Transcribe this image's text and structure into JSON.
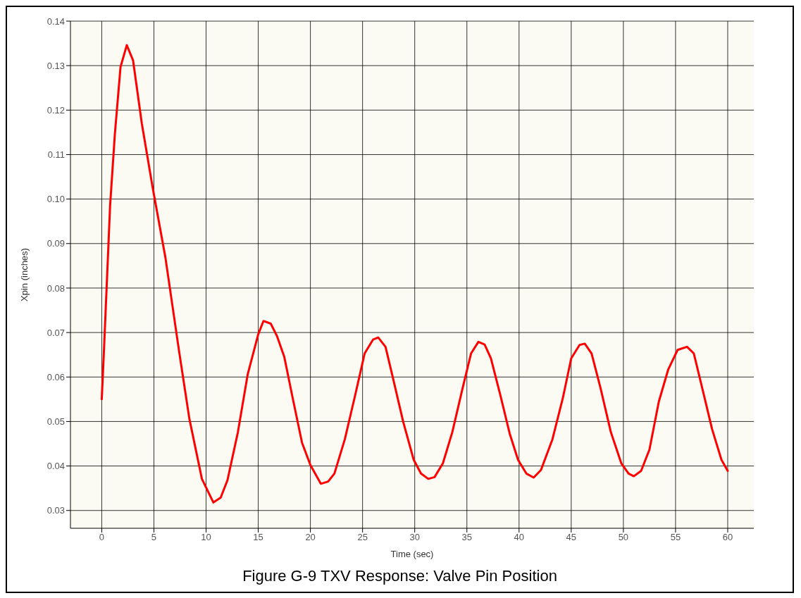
{
  "chart_data": {
    "type": "line",
    "title": "Figure G-9  TXV Response: Valve Pin Position",
    "xlabel": "Time (sec)",
    "ylabel": "Xpin (inches)",
    "x": [
      0,
      0.2,
      0.8,
      1.26,
      1.8,
      2.4,
      3.0,
      3.84,
      4.9,
      6.1,
      7.4,
      8.4,
      9.6,
      10.7,
      11.4,
      12.05,
      13.05,
      14.0,
      15.0,
      15.5,
      16.2,
      16.8,
      17.5,
      18.3,
      19.2,
      20.0,
      21.0,
      21.7,
      22.3,
      23.3,
      24.3,
      25.2,
      26.0,
      26.5,
      27.2,
      27.9,
      28.9,
      29.9,
      30.6,
      31.3,
      31.9,
      32.7,
      33.6,
      34.6,
      35.4,
      36.1,
      36.7,
      37.3,
      38.2,
      39.1,
      39.9,
      40.7,
      41.4,
      42.1,
      43.2,
      44.2,
      45.0,
      45.8,
      46.3,
      46.95,
      47.8,
      48.8,
      49.8,
      50.5,
      51.0,
      51.7,
      52.5,
      53.4,
      54.3,
      55.2,
      56.1,
      56.75,
      57.6,
      58.5,
      59.4,
      60
    ],
    "series": [
      {
        "color": "#ff0000",
        "values": [
          0.055,
          0.0653,
          0.0985,
          0.1147,
          0.1297,
          0.1346,
          0.1312,
          0.117,
          0.1023,
          0.0869,
          0.066,
          0.0506,
          0.0371,
          0.0318,
          0.0329,
          0.0368,
          0.0476,
          0.0607,
          0.0696,
          0.0726,
          0.072,
          0.0692,
          0.0645,
          0.0553,
          0.0452,
          0.0402,
          0.036,
          0.0365,
          0.0383,
          0.046,
          0.056,
          0.0653,
          0.0684,
          0.0689,
          0.0668,
          0.0599,
          0.0499,
          0.0414,
          0.0383,
          0.0371,
          0.0375,
          0.0406,
          0.0476,
          0.0576,
          0.0653,
          0.0679,
          0.0673,
          0.0642,
          0.056,
          0.0473,
          0.0414,
          0.0383,
          0.0374,
          0.0391,
          0.046,
          0.0553,
          0.0642,
          0.0672,
          0.0675,
          0.0653,
          0.0576,
          0.0476,
          0.0406,
          0.0383,
          0.0377,
          0.0389,
          0.0437,
          0.0545,
          0.0617,
          0.0661,
          0.0668,
          0.0653,
          0.0571,
          0.0483,
          0.0414,
          0.0389
        ]
      }
    ],
    "xlim": [
      -3,
      62.5
    ],
    "xticks": [
      0,
      5,
      10,
      15,
      20,
      25,
      30,
      35,
      40,
      45,
      50,
      55,
      60
    ],
    "ylim": [
      0.026,
      0.14
    ],
    "yticks": [
      {
        "value": 0.03,
        "label": "0.03"
      },
      {
        "value": 0.04,
        "label": "0.04"
      },
      {
        "value": 0.05,
        "label": "0.05"
      },
      {
        "value": 0.06,
        "label": "0.06"
      },
      {
        "value": 0.07,
        "label": "0.07"
      },
      {
        "value": 0.08,
        "label": "0.08"
      },
      {
        "value": 0.09,
        "label": "0.09"
      },
      {
        "value": 0.1,
        "label": "0.10"
      },
      {
        "value": 0.11,
        "label": "0.11"
      },
      {
        "value": 0.12,
        "label": "0.12"
      },
      {
        "value": 0.13,
        "label": "0.13"
      },
      {
        "value": 0.14,
        "label": "0.14"
      }
    ],
    "grid": true,
    "marker": "none",
    "line_style": "solid"
  }
}
